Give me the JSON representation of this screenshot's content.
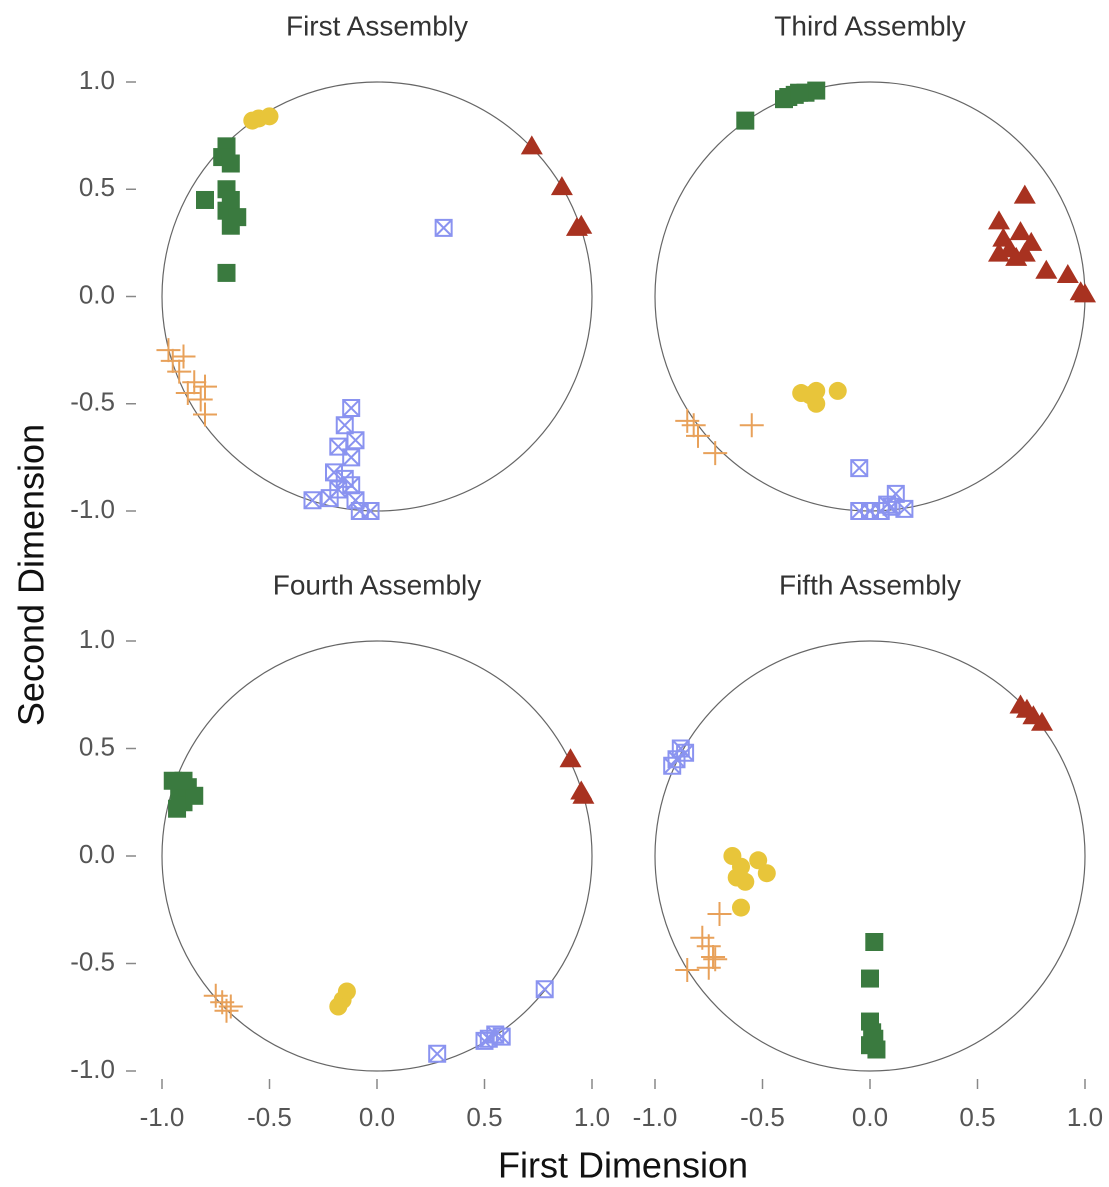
{
  "x_label": "First Dimension",
  "y_label": "Second Dimension",
  "chart_data": [
    {
      "type": "scatter",
      "title": "First Assembly",
      "unit_circle": true,
      "xlim": [
        -1,
        1
      ],
      "ylim": [
        -1,
        1
      ],
      "yticks": [
        {
          "value": -1,
          "label": "-1.0"
        },
        {
          "value": -0.5,
          "label": "-0.5"
        },
        {
          "value": 0,
          "label": "0.0"
        },
        {
          "value": 0.5,
          "label": "0.5"
        },
        {
          "value": 1,
          "label": "1.0"
        }
      ],
      "series": [
        {
          "color": "#3a7a3f",
          "marker": "square",
          "x": [
            -0.7,
            -0.72,
            -0.68,
            -0.7,
            -0.68,
            -0.8,
            -0.7,
            -0.65,
            -0.68,
            -0.7
          ],
          "values": [
            0.7,
            0.65,
            0.62,
            0.5,
            0.45,
            0.45,
            0.4,
            0.37,
            0.33,
            0.11
          ]
        },
        {
          "color": "#e8c53a",
          "marker": "circle",
          "x": [
            -0.55,
            -0.5,
            -0.58
          ],
          "values": [
            0.83,
            0.84,
            0.82
          ]
        },
        {
          "color": "#a83220",
          "marker": "triangle",
          "x": [
            0.72,
            0.86,
            0.95,
            0.93
          ],
          "values": [
            0.7,
            0.51,
            0.33,
            0.32
          ]
        },
        {
          "color": "#e8a15a",
          "marker": "plus",
          "x": [
            -0.97,
            -0.95,
            -0.92,
            -0.9,
            -0.85,
            -0.88,
            -0.82,
            -0.8,
            -0.8
          ],
          "values": [
            -0.25,
            -0.3,
            -0.35,
            -0.28,
            -0.4,
            -0.45,
            -0.48,
            -0.42,
            -0.55
          ]
        },
        {
          "color": "#8a93f0",
          "marker": "boxed-x",
          "x": [
            0.31,
            -0.12,
            -0.15,
            -0.1,
            -0.18,
            -0.12,
            -0.2,
            -0.15,
            -0.18,
            -0.3,
            -0.22,
            -0.1,
            -0.08,
            -0.03,
            -0.12
          ],
          "values": [
            0.32,
            -0.52,
            -0.6,
            -0.67,
            -0.7,
            -0.75,
            -0.82,
            -0.85,
            -0.9,
            -0.95,
            -0.94,
            -0.95,
            -1.0,
            -1.0,
            -0.88
          ]
        }
      ]
    },
    {
      "type": "scatter",
      "title": "Third Assembly",
      "unit_circle": true,
      "xlim": [
        -1,
        1
      ],
      "ylim": [
        -1,
        1
      ],
      "series": [
        {
          "color": "#3a7a3f",
          "marker": "square",
          "x": [
            -0.58,
            -0.38,
            -0.35,
            -0.3,
            -0.25,
            -0.4,
            -0.33
          ],
          "values": [
            0.82,
            0.93,
            0.94,
            0.95,
            0.96,
            0.92,
            0.95
          ]
        },
        {
          "color": "#a83220",
          "marker": "triangle",
          "x": [
            0.72,
            0.6,
            0.62,
            0.65,
            0.7,
            0.68,
            0.72,
            0.75,
            0.6,
            0.82,
            0.92,
            0.98,
            1.0
          ],
          "values": [
            0.47,
            0.35,
            0.27,
            0.22,
            0.3,
            0.18,
            0.2,
            0.25,
            0.2,
            0.12,
            0.1,
            0.02,
            0.01
          ]
        },
        {
          "color": "#e8c53a",
          "marker": "circle",
          "x": [
            -0.32,
            -0.28,
            -0.25,
            -0.25,
            -0.15
          ],
          "values": [
            -0.45,
            -0.46,
            -0.44,
            -0.5,
            -0.44
          ]
        },
        {
          "color": "#e8a15a",
          "marker": "plus",
          "x": [
            -0.85,
            -0.82,
            -0.8,
            -0.72,
            -0.55
          ],
          "values": [
            -0.58,
            -0.6,
            -0.65,
            -0.73,
            -0.6
          ]
        },
        {
          "color": "#8a93f0",
          "marker": "boxed-x",
          "x": [
            -0.05,
            -0.05,
            0.0,
            0.05,
            0.1,
            0.12,
            0.16,
            0.08
          ],
          "values": [
            -0.8,
            -1.0,
            -1.0,
            -1.0,
            -0.98,
            -0.92,
            -0.99,
            -0.97
          ]
        }
      ]
    },
    {
      "type": "scatter",
      "title": "Fourth Assembly",
      "unit_circle": true,
      "xlim": [
        -1,
        1
      ],
      "ylim": [
        -1,
        1
      ],
      "xticks": [
        {
          "value": -1,
          "label": "-1.0"
        },
        {
          "value": -0.5,
          "label": "-0.5"
        },
        {
          "value": 0,
          "label": "0.0"
        },
        {
          "value": 0.5,
          "label": "0.5"
        },
        {
          "value": 1,
          "label": "1.0"
        }
      ],
      "yticks": [
        {
          "value": -1,
          "label": "-1.0"
        },
        {
          "value": -0.5,
          "label": "-0.5"
        },
        {
          "value": 0,
          "label": "0.0"
        },
        {
          "value": 0.5,
          "label": "0.5"
        },
        {
          "value": 1,
          "label": "1.0"
        }
      ],
      "series": [
        {
          "color": "#3a7a3f",
          "marker": "square",
          "x": [
            -0.95,
            -0.92,
            -0.9,
            -0.88,
            -0.93,
            -0.85,
            -0.9
          ],
          "values": [
            0.35,
            0.3,
            0.25,
            0.32,
            0.22,
            0.28,
            0.35
          ]
        },
        {
          "color": "#a83220",
          "marker": "triangle",
          "x": [
            0.9,
            0.96,
            0.95
          ],
          "values": [
            0.45,
            0.28,
            0.3
          ]
        },
        {
          "color": "#e8a15a",
          "marker": "plus",
          "x": [
            -0.75,
            -0.72,
            -0.7,
            -0.68
          ],
          "values": [
            -0.65,
            -0.68,
            -0.72,
            -0.7
          ]
        },
        {
          "color": "#e8c53a",
          "marker": "circle",
          "x": [
            -0.14,
            -0.16,
            -0.18
          ],
          "values": [
            -0.63,
            -0.67,
            -0.7
          ]
        },
        {
          "color": "#8a93f0",
          "marker": "boxed-x",
          "x": [
            0.78,
            0.28,
            0.52,
            0.55,
            0.58,
            0.5
          ],
          "values": [
            -0.62,
            -0.92,
            -0.85,
            -0.83,
            -0.84,
            -0.86
          ]
        }
      ]
    },
    {
      "type": "scatter",
      "title": "Fifth Assembly",
      "unit_circle": true,
      "xlim": [
        -1,
        1
      ],
      "ylim": [
        -1,
        1
      ],
      "xticks": [
        {
          "value": -1,
          "label": "-1.0"
        },
        {
          "value": -0.5,
          "label": "-0.5"
        },
        {
          "value": 0,
          "label": "0.0"
        },
        {
          "value": 0.5,
          "label": "0.5"
        },
        {
          "value": 1,
          "label": "1.0"
        }
      ],
      "series": [
        {
          "color": "#8a93f0",
          "marker": "boxed-x",
          "x": [
            -0.9,
            -0.88,
            -0.86,
            -0.92
          ],
          "values": [
            0.45,
            0.5,
            0.48,
            0.42
          ]
        },
        {
          "color": "#a83220",
          "marker": "triangle",
          "x": [
            0.7,
            0.73,
            0.76,
            0.8
          ],
          "values": [
            0.7,
            0.68,
            0.65,
            0.62
          ]
        },
        {
          "color": "#e8c53a",
          "marker": "circle",
          "x": [
            -0.64,
            -0.6,
            -0.62,
            -0.58,
            -0.52,
            -0.48,
            -0.6
          ],
          "values": [
            0.0,
            -0.05,
            -0.1,
            -0.12,
            -0.02,
            -0.08,
            -0.24
          ]
        },
        {
          "color": "#e8a15a",
          "marker": "plus",
          "x": [
            -0.7,
            -0.78,
            -0.75,
            -0.73,
            -0.75,
            -0.85,
            -0.72
          ],
          "values": [
            -0.27,
            -0.38,
            -0.42,
            -0.47,
            -0.52,
            -0.53,
            -0.48
          ]
        },
        {
          "color": "#3a7a3f",
          "marker": "square",
          "x": [
            0.02,
            0.0,
            0.0,
            0.01,
            0.02,
            0.0,
            0.03
          ],
          "values": [
            -0.4,
            -0.57,
            -0.77,
            -0.82,
            -0.85,
            -0.88,
            -0.9
          ]
        }
      ]
    }
  ]
}
